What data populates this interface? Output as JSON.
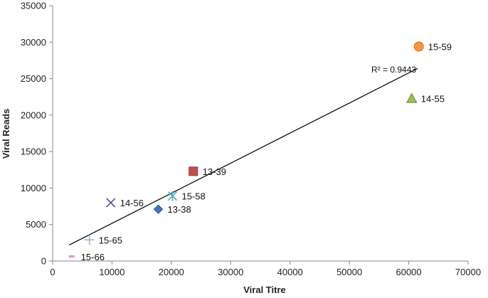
{
  "chart_data": {
    "type": "scatter",
    "title": "",
    "xlabel": "Viral Titre",
    "ylabel": "Viral Reads",
    "xlim": [
      0,
      70000
    ],
    "ylim": [
      0,
      35000
    ],
    "x_ticks": [
      "0",
      "10000",
      "20000",
      "30000",
      "40000",
      "50000",
      "60000",
      "70000"
    ],
    "y_ticks": [
      "0",
      "5000",
      "10000",
      "15000",
      "20000",
      "25000",
      "30000",
      "35000"
    ],
    "grid": false,
    "legend": "none",
    "points": [
      {
        "label": "13-38",
        "x": 17800,
        "y": 7100,
        "marker": "diamond",
        "color": "#4472c4"
      },
      {
        "label": "13-39",
        "x": 23700,
        "y": 12300,
        "marker": "square",
        "color": "#c0504d"
      },
      {
        "label": "14-55",
        "x": 60500,
        "y": 22300,
        "marker": "triangle",
        "color": "#9bbb59"
      },
      {
        "label": "14-56",
        "x": 9800,
        "y": 8000,
        "marker": "x",
        "color": "#5b4a9a"
      },
      {
        "label": "15-58",
        "x": 20200,
        "y": 8900,
        "marker": "star",
        "color": "#4bacc6"
      },
      {
        "label": "15-59",
        "x": 61700,
        "y": 29400,
        "marker": "circle",
        "color": "#f79646"
      },
      {
        "label": "15-65",
        "x": 6200,
        "y": 2900,
        "marker": "plus",
        "color": "#95b3d7"
      },
      {
        "label": "15-66",
        "x": 3200,
        "y": 600,
        "marker": "dash",
        "color": "#e6a3a3"
      }
    ],
    "trendline": {
      "type": "linear",
      "x_start": 2800,
      "y_start": 2200,
      "x_end": 61500,
      "y_end": 26400,
      "r2_label": "R² = 0.9443"
    }
  }
}
